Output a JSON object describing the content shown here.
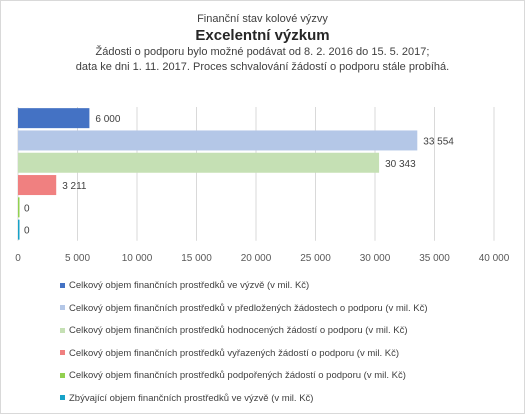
{
  "titles": {
    "pre": "Finanční stav kolové výzvy",
    "main": "Excelentní výzkum",
    "line1": "Žádosti o podporu bylo možné  podávat od 8. 2. 2016 do 15. 5. 2017;",
    "line2": "data ke  dni 1. 11. 2017. Proces schvalování žádostí o podporu stále probíhá."
  },
  "chart_data": {
    "type": "bar",
    "orientation": "horizontal",
    "series": [
      {
        "name": "Celkový objem finančních prostředků ve výzvě (v mil. Kč)",
        "value": 6000,
        "label": "6 000",
        "color": "#4472c4"
      },
      {
        "name": "Celkový objem finančních prostředků v předložených žádostech o podporu (v mil. Kč)",
        "value": 33554,
        "label": "33 554",
        "color": "#b4c7e7"
      },
      {
        "name": "Celkový objem finančních prostředků hodnocených žádostí o podporu (v mil. Kč)",
        "value": 30343,
        "label": "30 343",
        "color": "#c5e0b4"
      },
      {
        "name": "Celkový objem finančních prostředků vyřazených žádostí o podporu (v mil. Kč)",
        "value": 3211,
        "label": "3 211",
        "color": "#f08080"
      },
      {
        "name": "Celkový objem finančních prostředků podpořených žádostí o podporu (v mil. Kč)",
        "value": 0,
        "label": "0",
        "color": "#92d050"
      },
      {
        "name": "Zbývající objem finančních prostředků ve výzvě (v mil. Kč)",
        "value": 0,
        "label": "0",
        "color": "#17a2c8"
      }
    ],
    "xlim": [
      0,
      40000
    ],
    "xticks": [
      0,
      5000,
      10000,
      15000,
      20000,
      25000,
      30000,
      35000,
      40000
    ],
    "xtick_labels": [
      "0",
      "5 000",
      "10 000",
      "15 000",
      "20 000",
      "25 000",
      "30 000",
      "35 000",
      "40 000"
    ],
    "grid": true,
    "legend_position": "bottom"
  }
}
